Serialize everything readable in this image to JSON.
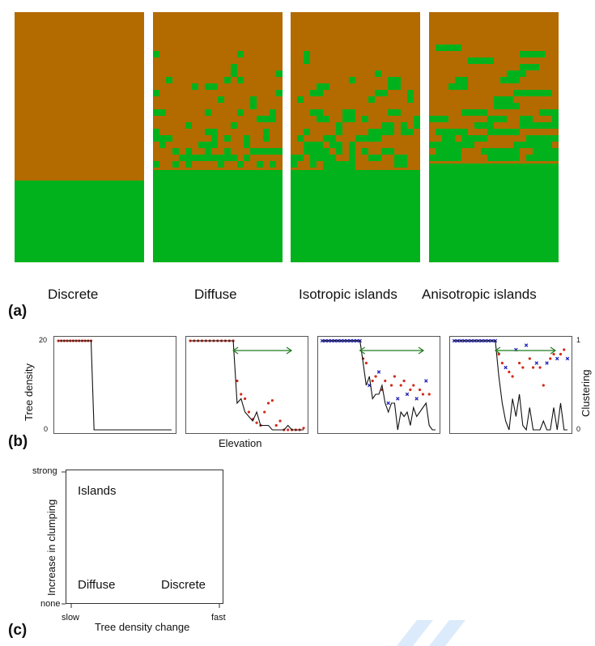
{
  "colors": {
    "soil": "#b36b00",
    "tree": "#02b21c",
    "low_dots": "#d22a1a",
    "high_x": "#2020b8",
    "arrow": "#1f7a1f"
  },
  "panel_a": {
    "letter": "(a)",
    "patterns": [
      {
        "label": "Discrete"
      },
      {
        "label": "Diffuse"
      },
      {
        "label": "Isotropic islands"
      },
      {
        "label": "Anisotropic islands"
      }
    ]
  },
  "panel_b": {
    "letter": "(b)",
    "ylabel_left": "Tree density",
    "ylabel_right": "Clustering",
    "xlabel": "Elevation",
    "yticks_left": [
      "20",
      "0"
    ],
    "yticks_right": [
      "1",
      "0"
    ],
    "chart_data": [
      {
        "type": "line",
        "density": [
          20,
          20,
          20,
          20,
          20,
          20,
          20,
          20,
          20,
          20,
          20,
          20,
          0,
          0,
          0,
          0,
          0,
          0,
          0,
          0,
          0,
          0,
          0,
          0,
          0,
          0,
          0,
          0,
          0,
          0,
          0,
          0,
          0,
          0,
          0,
          0,
          0,
          0,
          0
        ],
        "ylim": [
          0,
          20
        ]
      },
      {
        "type": "line",
        "density": [
          20,
          20,
          20,
          20,
          20,
          20,
          20,
          20,
          20,
          20,
          20,
          20,
          6,
          7,
          4,
          3,
          2,
          4,
          1,
          1,
          1,
          0,
          0,
          0,
          0,
          1,
          0,
          0,
          0,
          0
        ],
        "clustering_points": [
          1,
          1,
          1,
          1,
          1,
          1,
          1,
          1,
          1,
          1,
          1,
          1,
          0.55,
          0.4,
          0.35,
          0.2,
          0.12,
          0.08,
          0.05,
          0.2,
          0.3,
          0.33,
          0.05,
          0.1,
          0,
          0,
          0,
          0,
          0,
          0.02
        ],
        "ylim": [
          0,
          20
        ]
      },
      {
        "type": "line",
        "density": [
          20,
          20,
          20,
          20,
          20,
          20,
          20,
          20,
          20,
          20,
          20,
          20,
          20,
          15,
          10,
          12,
          7,
          8,
          8,
          10,
          6,
          4,
          6,
          6,
          0,
          4,
          3,
          4,
          1,
          5,
          3,
          4,
          5,
          6,
          1,
          0,
          0
        ],
        "clustering_points": [
          1,
          1,
          1,
          1,
          1,
          1,
          1,
          1,
          1,
          1,
          1,
          1,
          1,
          0.8,
          0.75,
          0.5,
          0.55,
          0.6,
          0.65,
          0.45,
          0.55,
          0.3,
          0.5,
          0.6,
          0.35,
          0.5,
          0.55,
          0.4,
          0.45,
          0.5,
          0.35,
          0.45,
          0.4,
          0.55,
          0.4
        ],
        "ylim": [
          0,
          20
        ]
      },
      {
        "type": "line",
        "density": [
          20,
          20,
          20,
          20,
          20,
          20,
          20,
          20,
          20,
          20,
          20,
          20,
          20,
          12,
          6,
          2,
          0,
          7,
          3,
          8,
          1,
          0,
          5,
          0,
          0,
          0,
          2,
          0,
          0,
          5,
          0,
          6,
          0,
          0
        ],
        "clustering_points": [
          1,
          1,
          1,
          1,
          1,
          1,
          1,
          1,
          1,
          1,
          1,
          1,
          1,
          0.85,
          0.75,
          0.7,
          0.65,
          0.6,
          0.9,
          0.75,
          0.7,
          0.95,
          0.8,
          0.7,
          0.75,
          0.7,
          0.5,
          0.75,
          0.8,
          0.85,
          0.8,
          0.85,
          0.9,
          0.8
        ],
        "ylim": [
          0,
          20
        ]
      }
    ]
  },
  "panel_c": {
    "letter": "(c)",
    "ylabel": "Increase in clumping",
    "xlabel": "Tree density change",
    "yticks": [
      "strong",
      "none"
    ],
    "xticks": [
      "slow",
      "fast"
    ],
    "labels": [
      "Islands",
      "Diffuse",
      "Discrete"
    ]
  }
}
